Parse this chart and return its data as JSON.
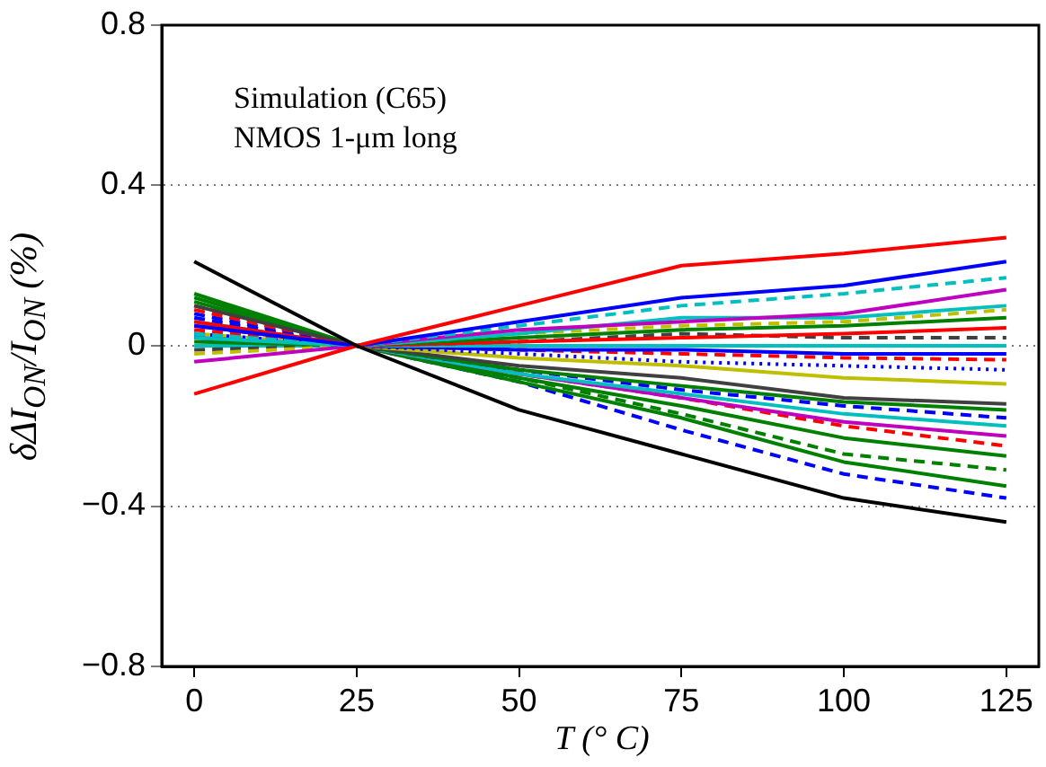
{
  "chart_data": {
    "type": "line",
    "xlabel": "T (° C)",
    "ylabel": "δΔI$_{ON}$/I$_{ON}$ (%)",
    "annotations": [
      "Simulation (C65)",
      "NMOS 1-μm long"
    ],
    "x": [
      0,
      25,
      50,
      75,
      100,
      125
    ],
    "xlim": [
      -5,
      130
    ],
    "xticks": [
      0,
      25,
      50,
      75,
      100,
      125
    ],
    "ylim": [
      -0.8,
      0.8
    ],
    "yticks": [
      {
        "value": -0.8,
        "label": "−0.8"
      },
      {
        "value": -0.4,
        "label": "−0.4"
      },
      0,
      0.4,
      0.8
    ],
    "grid": "y",
    "legend": false,
    "marker": "none",
    "series": [
      {
        "color": "#000000",
        "line_style": "solid",
        "values": [
          0.21,
          0,
          -0.16,
          -0.27,
          -0.38,
          -0.44
        ]
      },
      {
        "color": "#ff0000",
        "line_style": "solid",
        "values": [
          -0.12,
          0,
          0.1,
          0.2,
          0.23,
          0.27
        ]
      },
      {
        "color": "#0000ff",
        "line_style": "solid",
        "values": [
          0.05,
          0,
          0.06,
          0.12,
          0.15,
          0.21
        ]
      },
      {
        "color": "#00bfbf",
        "line_style": "dashed",
        "values": [
          0.03,
          0,
          0.05,
          0.1,
          0.13,
          0.17
        ]
      },
      {
        "color": "#bf00bf",
        "line_style": "solid",
        "values": [
          -0.04,
          0,
          0.04,
          0.06,
          0.08,
          0.14
        ]
      },
      {
        "color": "#00bfbf",
        "line_style": "solid",
        "values": [
          0.02,
          0,
          0.03,
          0.07,
          0.07,
          0.1
        ]
      },
      {
        "color": "#bfbf00",
        "line_style": "dashed",
        "values": [
          -0.02,
          0,
          0.03,
          0.05,
          0.06,
          0.09
        ]
      },
      {
        "color": "#008000",
        "line_style": "solid",
        "values": [
          0.01,
          0,
          0.02,
          0.04,
          0.05,
          0.07
        ]
      },
      {
        "color": "#ff0000",
        "line_style": "solid",
        "values": [
          0.06,
          0,
          0.01,
          0.02,
          0.03,
          0.045
        ]
      },
      {
        "color": "#404040",
        "line_style": "dashed",
        "values": [
          -0.01,
          0,
          0.01,
          0.03,
          0.02,
          0.02
        ]
      },
      {
        "color": "#00bfbf",
        "line_style": "solid",
        "values": [
          0,
          0,
          0,
          0,
          0,
          0
        ]
      },
      {
        "color": "#0000ff",
        "line_style": "solid",
        "values": [
          0.02,
          0,
          -0.01,
          -0.01,
          -0.02,
          -0.02
        ]
      },
      {
        "color": "#ff0000",
        "line_style": "dashed",
        "values": [
          0.04,
          0,
          -0.01,
          -0.02,
          -0.03,
          -0.035
        ]
      },
      {
        "color": "#0000ff",
        "line_style": "dotted",
        "values": [
          0.03,
          0,
          -0.02,
          -0.04,
          -0.05,
          -0.06
        ]
      },
      {
        "color": "#bfbf00",
        "line_style": "solid",
        "values": [
          0.03,
          0,
          -0.03,
          -0.05,
          -0.08,
          -0.095
        ]
      },
      {
        "color": "#404040",
        "line_style": "solid",
        "values": [
          0.1,
          0,
          -0.05,
          -0.08,
          -0.13,
          -0.145
        ]
      },
      {
        "color": "#008000",
        "line_style": "solid",
        "values": [
          0.11,
          0,
          -0.06,
          -0.1,
          -0.14,
          -0.16
        ]
      },
      {
        "color": "#0000ff",
        "line_style": "dashed",
        "values": [
          0.07,
          0,
          -0.06,
          -0.11,
          -0.15,
          -0.18
        ]
      },
      {
        "color": "#00bfbf",
        "line_style": "solid",
        "values": [
          0.06,
          0,
          -0.07,
          -0.12,
          -0.17,
          -0.2
        ]
      },
      {
        "color": "#bf00bf",
        "line_style": "solid",
        "values": [
          0.05,
          0,
          -0.07,
          -0.13,
          -0.19,
          -0.225
        ]
      },
      {
        "color": "#ff0000",
        "line_style": "dashed",
        "values": [
          0.09,
          0,
          -0.07,
          -0.13,
          -0.2,
          -0.25
        ]
      },
      {
        "color": "#008000",
        "line_style": "solid",
        "values": [
          0.12,
          0,
          -0.08,
          -0.15,
          -0.23,
          -0.275
        ]
      },
      {
        "color": "#008000",
        "line_style": "dashed",
        "values": [
          0.1,
          0,
          -0.08,
          -0.17,
          -0.27,
          -0.31
        ]
      },
      {
        "color": "#008000",
        "line_style": "solid",
        "values": [
          0.13,
          0,
          -0.09,
          -0.18,
          -0.29,
          -0.35
        ]
      },
      {
        "color": "#0000ff",
        "line_style": "dashed",
        "values": [
          0.08,
          0,
          -0.09,
          -0.21,
          -0.32,
          -0.38
        ]
      }
    ]
  }
}
